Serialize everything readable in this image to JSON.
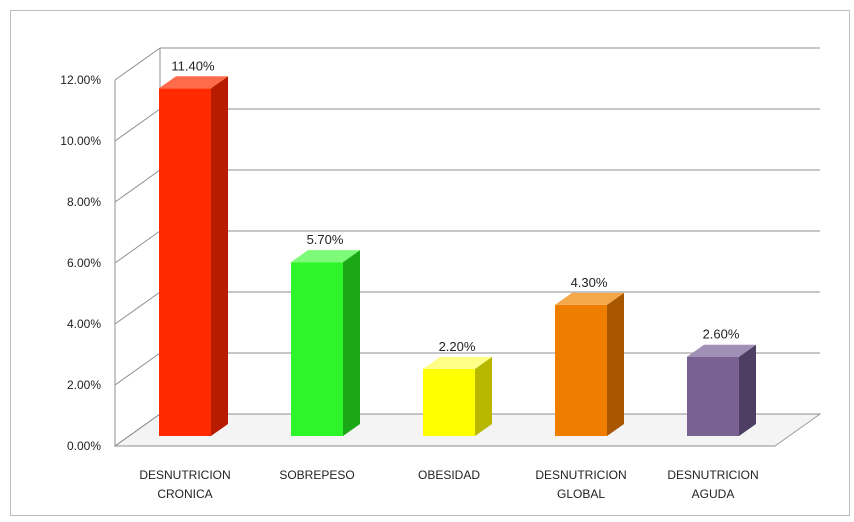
{
  "chart_data": {
    "type": "bar",
    "categories": [
      [
        "DESNUTRICION",
        "CRONICA"
      ],
      [
        "SOBREPESO"
      ],
      [
        "OBESIDAD"
      ],
      [
        "DESNUTRICION",
        "GLOBAL"
      ],
      [
        "DESNUTRICION",
        "AGUDA"
      ]
    ],
    "values": [
      11.4,
      5.7,
      2.2,
      4.3,
      2.6
    ],
    "data_labels": [
      "11.40%",
      "5.70%",
      "2.20%",
      "4.30%",
      "2.60%"
    ],
    "ylim": [
      0,
      12
    ],
    "y_ticks": [
      "0.00%",
      "2.00%",
      "4.00%",
      "6.00%",
      "8.00%",
      "10.00%",
      "12.00%"
    ],
    "grid": true,
    "bar_colors": [
      {
        "front": "#ff2a00",
        "side": "#b81c00",
        "top": "#ff6a4a"
      },
      {
        "front": "#2ef52a",
        "side": "#1aa817",
        "top": "#7dfb78"
      },
      {
        "front": "#ffff00",
        "side": "#b8b800",
        "top": "#ffff88"
      },
      {
        "front": "#ef7d00",
        "side": "#a85600",
        "top": "#f5a84a"
      },
      {
        "front": "#7a6194",
        "side": "#4f3e64",
        "top": "#a08fb6"
      }
    ],
    "title": "",
    "xlabel": "",
    "ylabel": ""
  }
}
